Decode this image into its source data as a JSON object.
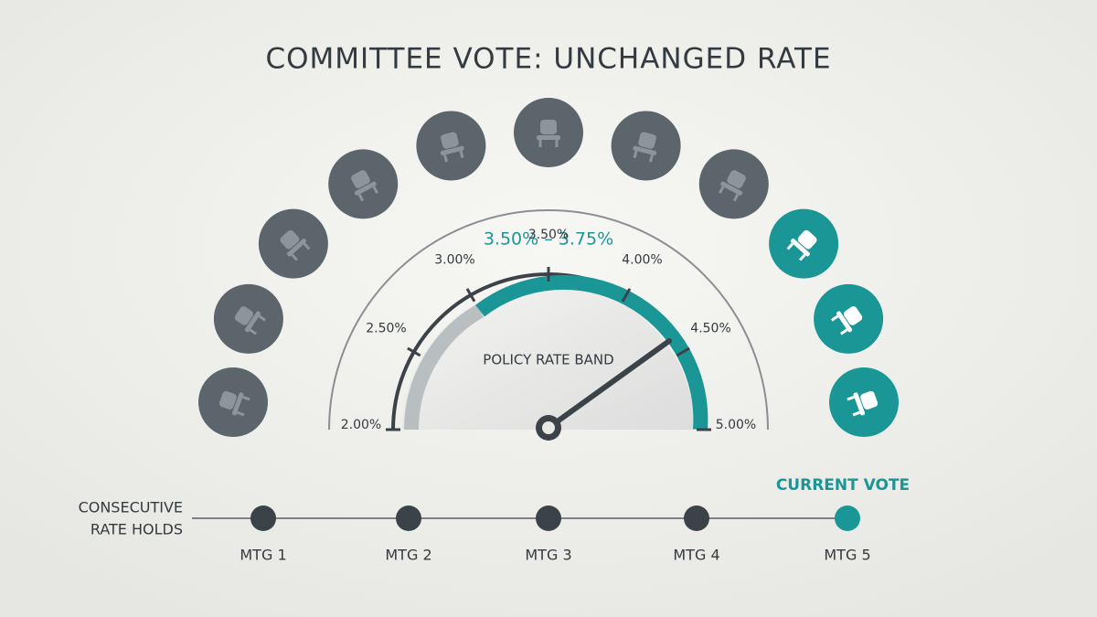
{
  "title": "COMMITTEE VOTE: UNCHANGED RATE",
  "gauge": {
    "band_label": "3.50% – 3.75%",
    "caption": "POLICY RATE BAND",
    "ticks": [
      "2.00%",
      "2.50%",
      "3.00%",
      "3.50%",
      "4.00%",
      "4.50%",
      "5.00%"
    ]
  },
  "timeline": {
    "label_lines": [
      "CONSECUTIVE",
      "RATE HOLDS"
    ],
    "current_label": "CURRENT VOTE",
    "meetings": [
      "MTG 1",
      "MTG 2",
      "MTG 3",
      "MTG 4",
      "MTG 5"
    ]
  }
}
